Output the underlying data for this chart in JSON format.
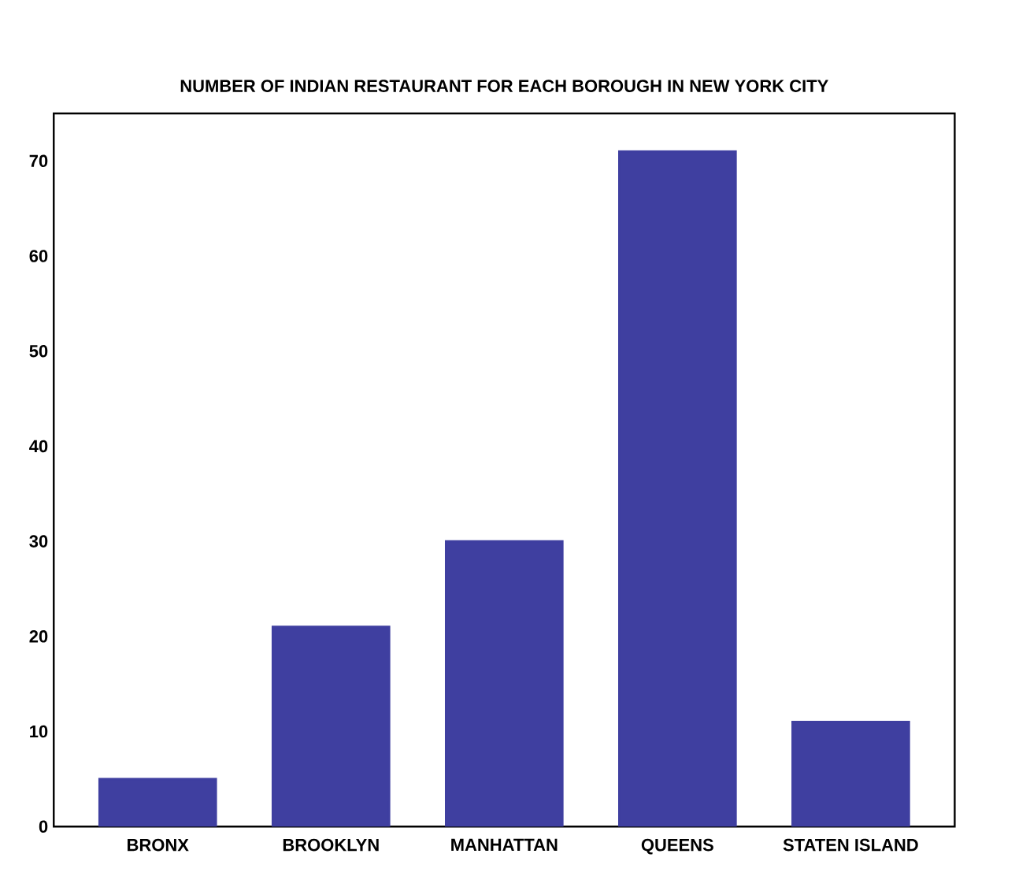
{
  "chart_data": {
    "type": "bar",
    "title": "NUMBER OF INDIAN RESTAURANT FOR EACH BOROUGH IN NEW YORK CITY",
    "categories": [
      "BRONX",
      "BROOKLYN",
      "MANHATTAN",
      "QUEENS",
      "STATEN ISLAND"
    ],
    "values": [
      5,
      21,
      30,
      71,
      11
    ],
    "color": "#3f3fa0",
    "ylim": [
      0,
      75
    ],
    "yticks": [
      0,
      10,
      20,
      30,
      40,
      50,
      60,
      70
    ],
    "grid": false
  }
}
